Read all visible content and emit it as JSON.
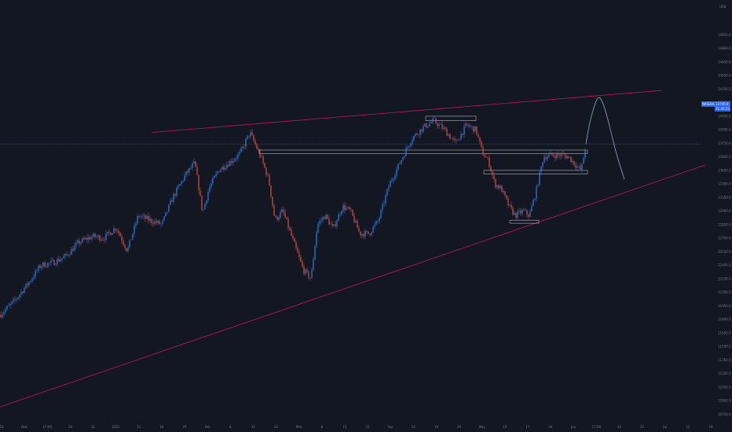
{
  "chart_data": {
    "type": "candlestick",
    "currency": "USD",
    "symbol_tag": "NASDAQ",
    "price_tag": {
      "price": "13740.8",
      "sub": "11:45:22"
    },
    "ylim": [
      10700,
      15250
    ],
    "y_ticks": [
      "14950.0",
      "14800.0",
      "14650.0",
      "14500.0",
      "14350.0",
      "14200.0",
      "14050.0",
      "13900.0",
      "13750.0",
      "13600.0",
      "13450.0",
      "13300.0",
      "13150.0",
      "13000.0",
      "12850.0",
      "12700.0",
      "12550.0",
      "12400.0",
      "12250.0",
      "12100.0",
      "11950.0",
      "11800.0",
      "11650.0",
      "11500.0",
      "11350.0",
      "11200.0",
      "11050.0",
      "10900.0",
      "10750.0"
    ],
    "x_ticks": [
      "23",
      "Dec",
      "17:00",
      "14",
      "21",
      "2021",
      "11",
      "18",
      "25",
      "Feb",
      "8",
      "15",
      "22",
      "Mar",
      "8",
      "15",
      "22",
      "Apr",
      "12",
      "19",
      "26",
      "May",
      "10",
      "17",
      "24",
      "Jun",
      "17:00",
      "14",
      "21",
      "Jul",
      "12",
      "19"
    ],
    "price_path": [
      [
        0,
        11850
      ],
      [
        18,
        12000
      ],
      [
        36,
        12200
      ],
      [
        52,
        12400
      ],
      [
        68,
        12430
      ],
      [
        84,
        12500
      ],
      [
        100,
        12650
      ],
      [
        118,
        12720
      ],
      [
        132,
        12700
      ],
      [
        148,
        12820
      ],
      [
        162,
        12560
      ],
      [
        176,
        12950
      ],
      [
        190,
        12900
      ],
      [
        206,
        12850
      ],
      [
        220,
        13150
      ],
      [
        236,
        13400
      ],
      [
        248,
        13530
      ],
      [
        258,
        12980
      ],
      [
        266,
        13250
      ],
      [
        278,
        13450
      ],
      [
        294,
        13550
      ],
      [
        306,
        13640
      ],
      [
        318,
        13870
      ],
      [
        332,
        13600
      ],
      [
        342,
        13350
      ],
      [
        350,
        12900
      ],
      [
        360,
        13000
      ],
      [
        372,
        12700
      ],
      [
        386,
        12350
      ],
      [
        396,
        12250
      ],
      [
        404,
        12850
      ],
      [
        414,
        12950
      ],
      [
        424,
        12800
      ],
      [
        436,
        13050
      ],
      [
        446,
        13000
      ],
      [
        458,
        12750
      ],
      [
        470,
        12750
      ],
      [
        482,
        12900
      ],
      [
        496,
        13300
      ],
      [
        510,
        13550
      ],
      [
        524,
        13800
      ],
      [
        538,
        13920
      ],
      [
        552,
        14000
      ],
      [
        566,
        13900
      ],
      [
        580,
        13750
      ],
      [
        594,
        13950
      ],
      [
        606,
        13900
      ],
      [
        614,
        13650
      ],
      [
        622,
        13550
      ],
      [
        630,
        13300
      ],
      [
        638,
        13250
      ],
      [
        648,
        13050
      ],
      [
        656,
        12950
      ],
      [
        666,
        13000
      ],
      [
        674,
        12950
      ],
      [
        682,
        13200
      ],
      [
        692,
        13600
      ],
      [
        702,
        13620
      ],
      [
        714,
        13620
      ],
      [
        724,
        13600
      ],
      [
        734,
        13500
      ],
      [
        740,
        13450
      ],
      [
        746,
        13740
      ]
    ],
    "lines": {
      "upper_trend": [
        [
          193,
          13870
        ],
        [
          842,
          14335
        ]
      ],
      "lower_trend": [
        [
          0,
          10830
        ],
        [
          898,
          13510
        ]
      ]
    },
    "zones": [
      {
        "x1": 330,
        "x2": 748,
        "p1": 13675,
        "p2": 13635
      },
      {
        "x1": 542,
        "x2": 606,
        "p1": 14050,
        "p2": 14000
      },
      {
        "x1": 616,
        "x2": 748,
        "p1": 13450,
        "p2": 13410
      },
      {
        "x1": 649,
        "x2": 686,
        "p1": 12895,
        "p2": 12865
      }
    ],
    "forecast": [
      [
        746,
        13740
      ],
      [
        750,
        13950
      ],
      [
        756,
        14150
      ],
      [
        762,
        14280
      ],
      [
        768,
        14200
      ],
      [
        776,
        13950
      ],
      [
        784,
        13650
      ],
      [
        795,
        13350
      ]
    ]
  }
}
